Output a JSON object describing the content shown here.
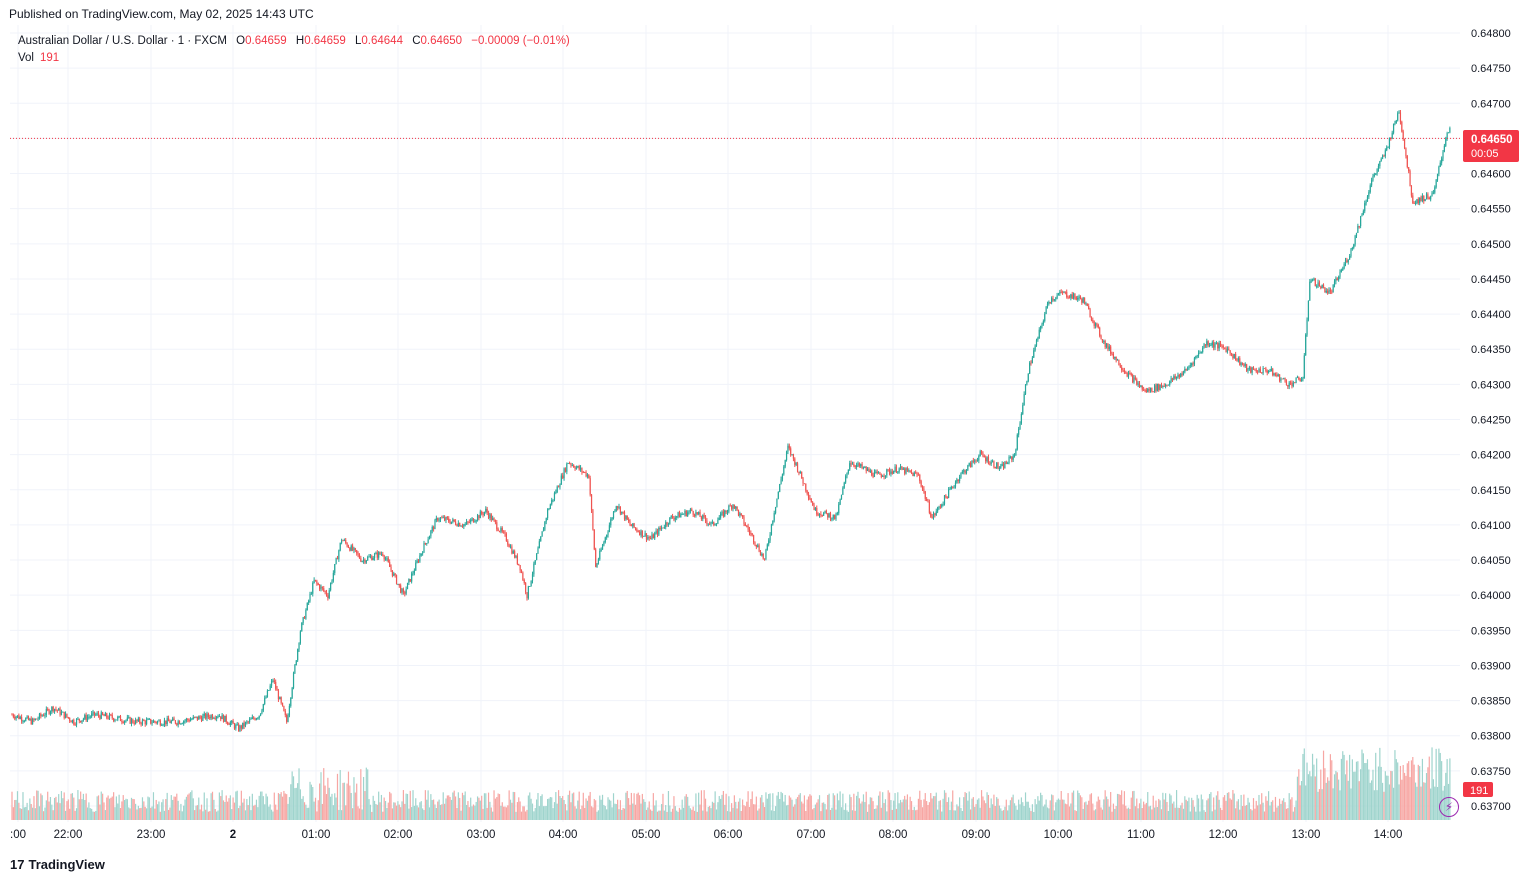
{
  "header": {
    "published": "Published on TradingView.com, May 02, 2025 14:43 UTC"
  },
  "legend": {
    "symbol": "Australian Dollar / U.S. Dollar · 1 · FXCM",
    "o_label": "O",
    "o_value": "0.64659",
    "h_label": "H",
    "h_value": "0.64659",
    "l_label": "L",
    "l_value": "0.64644",
    "c_label": "C",
    "c_value": "0.64650",
    "change": "−0.00009 (−0.01%)",
    "vol_label": "Vol",
    "vol_value": "191"
  },
  "price_badge": {
    "price": "0.64650",
    "countdown": "00:05"
  },
  "volume_badge": "191",
  "footer": {
    "brand": "TradingView",
    "mark": "17"
  },
  "colors": {
    "up": "#26a69a",
    "down": "#ef5350",
    "vol_up": "#9fd4cd",
    "vol_down": "#f7a6a3",
    "grid": "#f0f3fa",
    "badge": "#f23645",
    "bolt": "#9c27b0"
  },
  "icons": {
    "lightning": "lightning-icon",
    "logo": "tradingview-logo-icon"
  },
  "chart_data": {
    "type": "candlestick",
    "title": "Australian Dollar / U.S. Dollar · 1 · FXCM",
    "x_ticks": [
      ":00",
      "22:00",
      "23:00",
      "2",
      "01:00",
      "02:00",
      "03:00",
      "04:00",
      "05:00",
      "06:00",
      "07:00",
      "08:00",
      "09:00",
      "10:00",
      "11:00",
      "12:00",
      "13:00",
      "14:00"
    ],
    "y_ticks": [
      "0.64800",
      "0.64750",
      "0.64700",
      "0.64650",
      "0.64600",
      "0.64550",
      "0.64500",
      "0.64450",
      "0.64400",
      "0.64350",
      "0.64300",
      "0.64250",
      "0.64200",
      "0.64150",
      "0.64100",
      "0.64050",
      "0.64000",
      "0.63950",
      "0.63900",
      "0.63850",
      "0.63800",
      "0.63750",
      "0.63700"
    ],
    "ylim": [
      0.637,
      0.648
    ],
    "last_price": 0.6465,
    "close_path": [
      [
        "21:00",
        0.6383
      ],
      [
        "21:15",
        0.6382
      ],
      [
        "21:30",
        0.6384
      ],
      [
        "21:45",
        0.6382
      ],
      [
        "22:00",
        0.6383
      ],
      [
        "22:30",
        0.6382
      ],
      [
        "23:00",
        0.6382
      ],
      [
        "23:30",
        0.6383
      ],
      [
        "23:45",
        0.6381
      ],
      [
        "00:00",
        0.6383
      ],
      [
        "00:10",
        0.6388
      ],
      [
        "00:20",
        0.6382
      ],
      [
        "00:30",
        0.6395
      ],
      [
        "00:40",
        0.6402
      ],
      [
        "00:50",
        0.64
      ],
      [
        "01:00",
        0.6408
      ],
      [
        "01:15",
        0.6405
      ],
      [
        "01:30",
        0.6406
      ],
      [
        "01:45",
        0.64
      ],
      [
        "02:00",
        0.6407
      ],
      [
        "02:10",
        0.6411
      ],
      [
        "02:30",
        0.641
      ],
      [
        "02:45",
        0.6412
      ],
      [
        "03:00",
        0.6408
      ],
      [
        "03:10",
        0.6404
      ],
      [
        "03:15",
        0.64
      ],
      [
        "03:30",
        0.6412
      ],
      [
        "03:45",
        0.6419
      ],
      [
        "04:00",
        0.6417
      ],
      [
        "04:05",
        0.6404
      ],
      [
        "04:20",
        0.6413
      ],
      [
        "04:30",
        0.641
      ],
      [
        "04:45",
        0.6408
      ],
      [
        "05:00",
        0.6411
      ],
      [
        "05:15",
        0.6412
      ],
      [
        "05:30",
        0.641
      ],
      [
        "05:45",
        0.6413
      ],
      [
        "06:00",
        0.6408
      ],
      [
        "06:08",
        0.6405
      ],
      [
        "06:15",
        0.6412
      ],
      [
        "06:25",
        0.6421
      ],
      [
        "06:30",
        0.6419
      ],
      [
        "06:45",
        0.6412
      ],
      [
        "07:00",
        0.6411
      ],
      [
        "07:10",
        0.6419
      ],
      [
        "07:30",
        0.6417
      ],
      [
        "07:45",
        0.6418
      ],
      [
        "08:00",
        0.6417
      ],
      [
        "08:10",
        0.6411
      ],
      [
        "08:20",
        0.6414
      ],
      [
        "08:30",
        0.6417
      ],
      [
        "08:45",
        0.642
      ],
      [
        "09:00",
        0.6418
      ],
      [
        "09:10",
        0.642
      ],
      [
        "09:20",
        0.6432
      ],
      [
        "09:35",
        0.6442
      ],
      [
        "09:45",
        0.6443
      ],
      [
        "10:00",
        0.6442
      ],
      [
        "10:15",
        0.6436
      ],
      [
        "10:30",
        0.6432
      ],
      [
        "10:45",
        0.6429
      ],
      [
        "11:00",
        0.643
      ],
      [
        "11:15",
        0.6432
      ],
      [
        "11:30",
        0.6436
      ],
      [
        "11:45",
        0.6435
      ],
      [
        "12:00",
        0.6432
      ],
      [
        "12:15",
        0.6432
      ],
      [
        "12:30",
        0.643
      ],
      [
        "12:40",
        0.6431
      ],
      [
        "12:45",
        0.6445
      ],
      [
        "13:00",
        0.6443
      ],
      [
        "13:15",
        0.6449
      ],
      [
        "13:30",
        0.6459
      ],
      [
        "13:40",
        0.6463
      ],
      [
        "13:50",
        0.6469
      ],
      [
        "14:00",
        0.6456
      ],
      [
        "14:15",
        0.6457
      ],
      [
        "14:25",
        0.6466
      ],
      [
        "14:35",
        0.6468
      ],
      [
        "14:43",
        0.6465
      ]
    ]
  }
}
